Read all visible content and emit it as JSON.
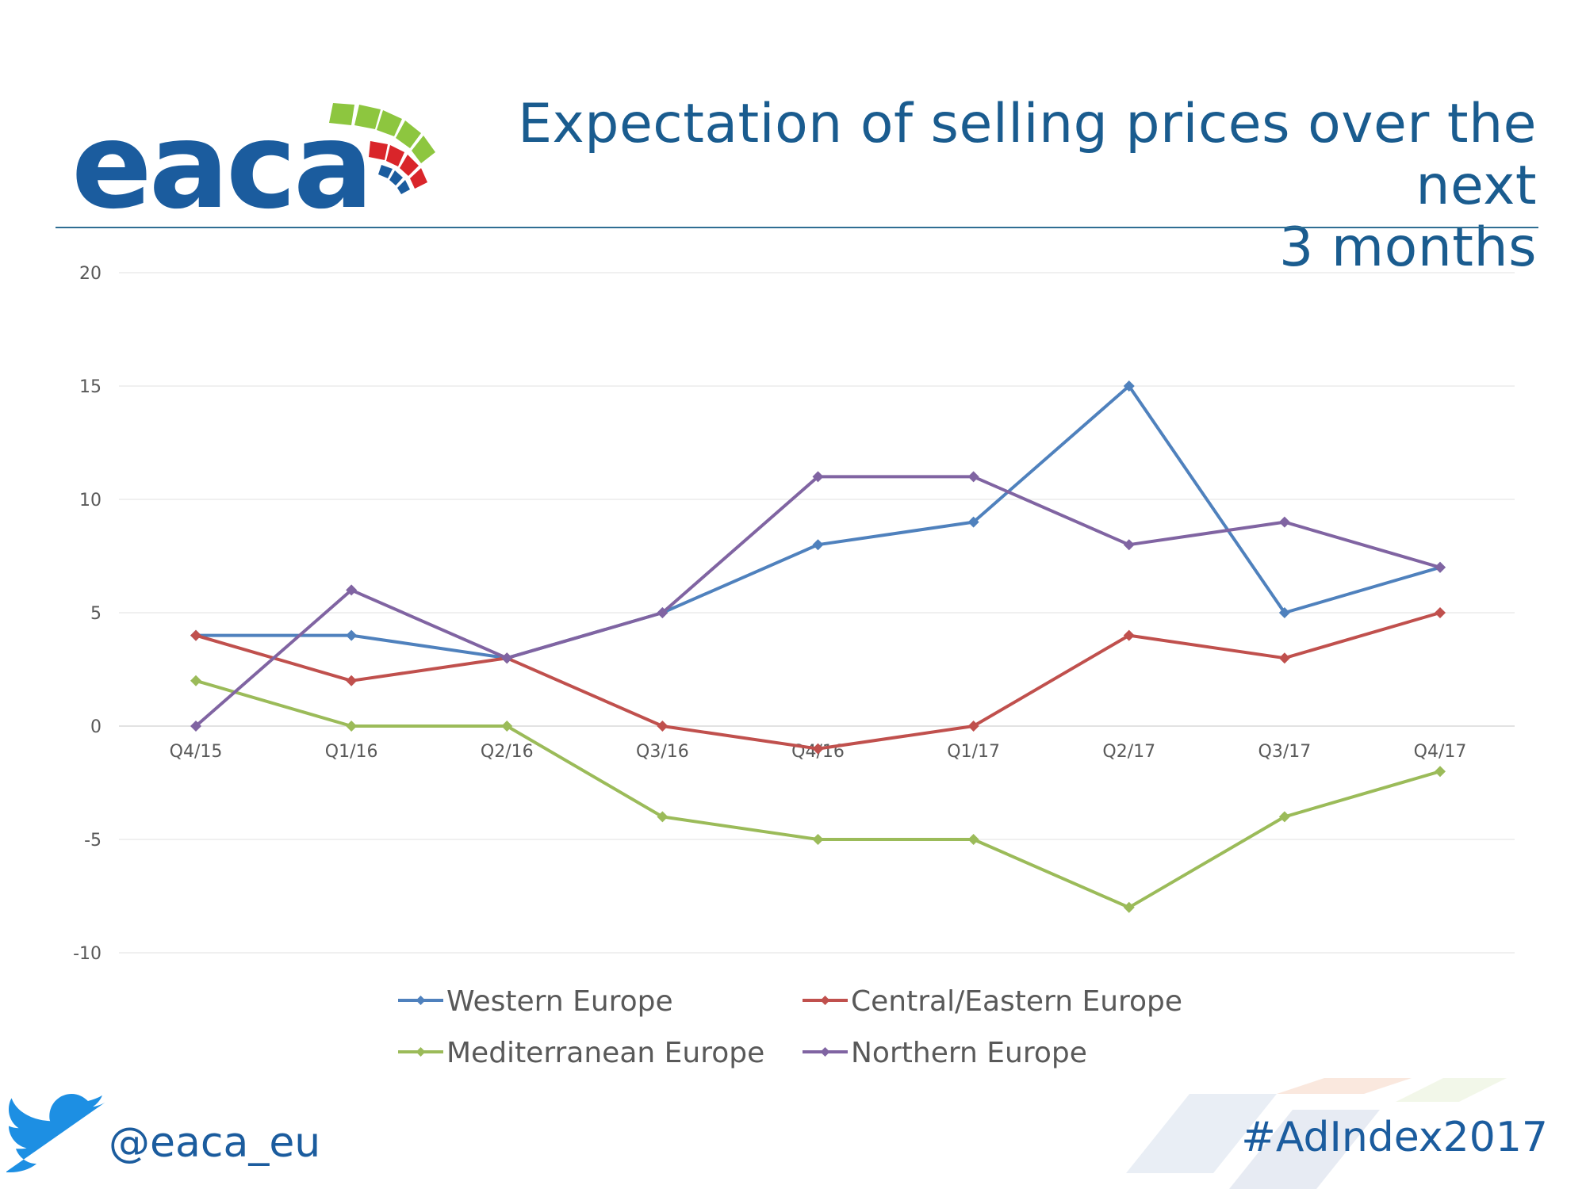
{
  "header": {
    "logo_text": "eaca",
    "title_line1": "Expectation of selling prices over the next",
    "title_line2": "3 months"
  },
  "footer": {
    "handle": "@eaca_eu",
    "hashtag": "#AdIndex2017"
  },
  "colors": {
    "brand_blue": "#1b5c9e",
    "logo_green": "#8dc63f",
    "logo_red": "#d9252a"
  },
  "chart_data": {
    "type": "line",
    "title": "Expectation of selling prices over the next 3 months",
    "categories": [
      "Q4/15",
      "Q1/16",
      "Q2/16",
      "Q3/16",
      "Q4/16",
      "Q1/17",
      "Q2/17",
      "Q3/17",
      "Q4/17"
    ],
    "ylim": [
      -10,
      20
    ],
    "yticks": [
      20,
      15,
      10,
      5,
      0,
      -5,
      -10
    ],
    "grid": true,
    "legend_position": "bottom",
    "series": [
      {
        "name": "Western Europe",
        "color": "#4f81bd",
        "values": [
          4,
          4,
          3,
          5,
          8,
          9,
          15,
          5,
          7
        ]
      },
      {
        "name": "Central/Eastern Europe",
        "color": "#c0504d",
        "values": [
          4,
          2,
          3,
          0,
          -1,
          0,
          4,
          3,
          5
        ]
      },
      {
        "name": "Mediterranean Europe",
        "color": "#9bbb59",
        "values": [
          2,
          0,
          0,
          -4,
          -5,
          -5,
          -8,
          -4,
          -2
        ]
      },
      {
        "name": "Northern Europe",
        "color": "#8064a2",
        "values": [
          0,
          6,
          3,
          5,
          11,
          11,
          8,
          9,
          7
        ]
      }
    ]
  }
}
